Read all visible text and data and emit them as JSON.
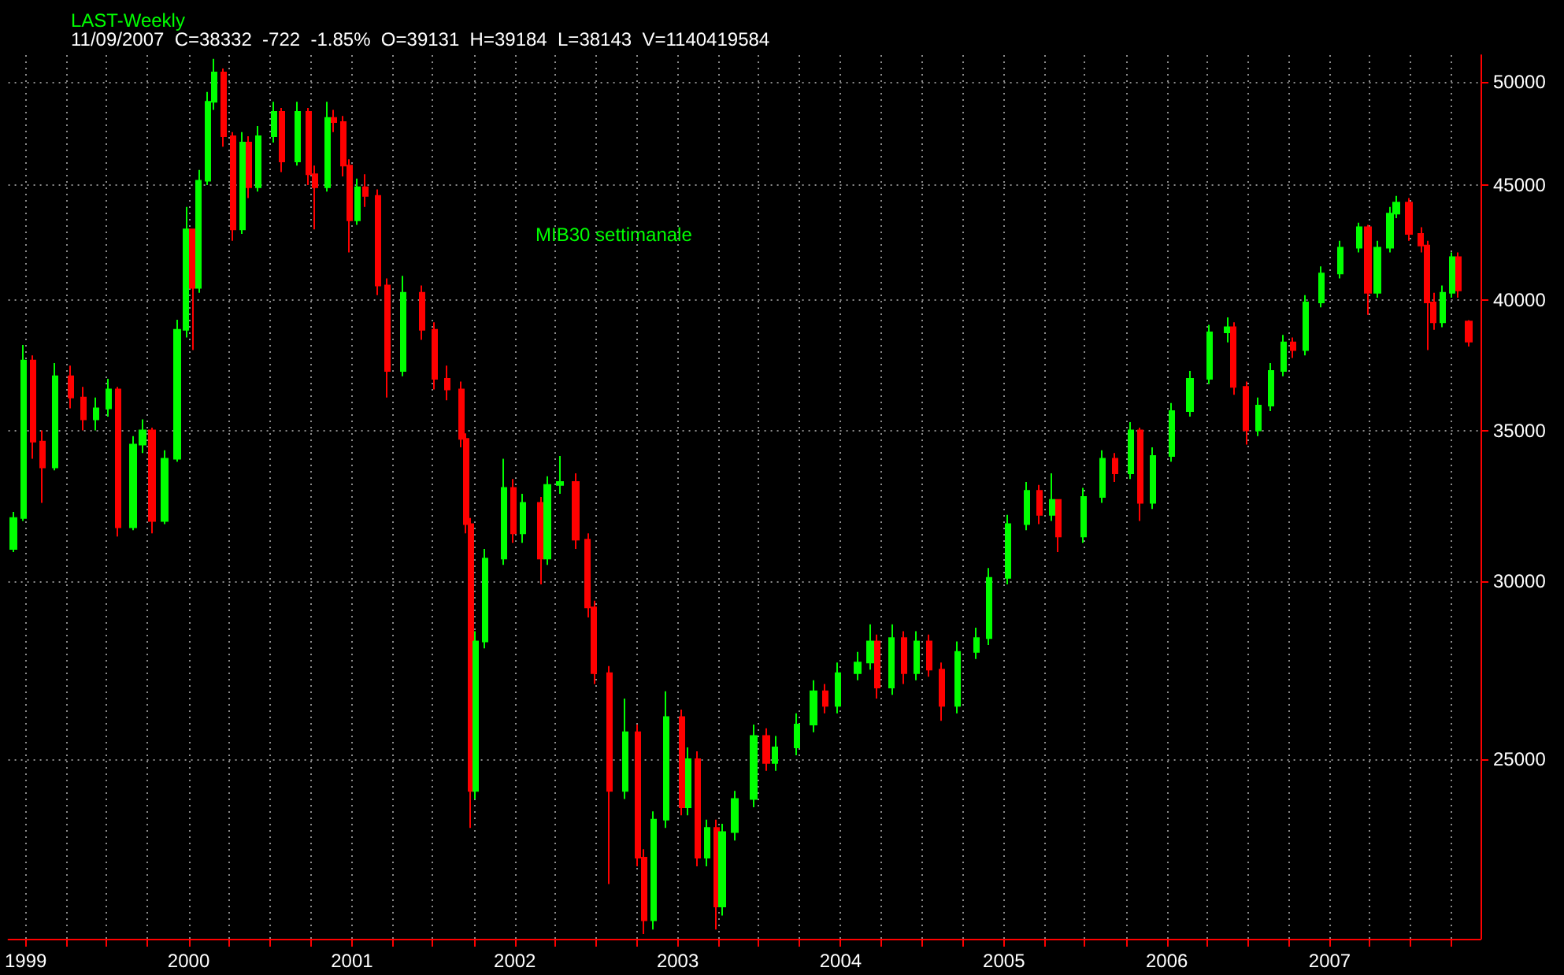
{
  "chart_data": {
    "type": "candlestick",
    "title": "LAST-Weekly",
    "subtitle": "11/09/2007  C=38332  -722  -1.85%  O=39131  H=39184  L=38143  V=1140419584",
    "annotations": [
      "MIB30 settimanale"
    ],
    "colors": [
      "#00ff00",
      "#00ff00",
      "#ff0000",
      "#ff0000",
      "#00ff00",
      "#ff0000",
      "#ff0000",
      "#00ff00",
      "#00ff00",
      "#ff0000",
      "#00ff00",
      "#00ff00",
      "#ff0000",
      "#00ff00",
      "#00ff00",
      "#00ff00",
      "#ff0000",
      "#00ff00",
      "#00ff00",
      "#00ff00",
      "#ff0000",
      "#ff0000",
      "#00ff00",
      "#ff0000",
      "#00ff00",
      "#00ff00",
      "#ff0000",
      "#00ff00",
      "#ff0000",
      "#ff0000",
      "#00ff00",
      "#ff0000",
      "#ff0000",
      "#ff0000",
      "#00ff00",
      "#ff0000",
      "#ff0000",
      "#ff0000",
      "#00ff00",
      "#ff0000",
      "#ff0000",
      "#ff0000",
      "#ff0000",
      "#ff0000",
      "#ff0000",
      "#00ff00",
      "#00ff00",
      "#00ff00",
      "#ff0000",
      "#00ff00",
      "#ff0000",
      "#00ff00",
      "#00ff00",
      "#ff0000",
      "#ff0000",
      "#ff0000",
      "#ff0000",
      "#00ff00",
      "#ff0000",
      "#ff0000",
      "#00ff00",
      "#00ff00",
      "#ff0000",
      "#00ff00",
      "#ff0000",
      "#00ff00",
      "#ff0000",
      "#00ff00",
      "#00ff00",
      "#00ff00",
      "#ff0000",
      "#00ff00",
      "#00ff00",
      "#00ff00",
      "#ff0000",
      "#00ff00",
      "#00ff00",
      "#00ff00",
      "#ff0000",
      "#00ff00",
      "#ff0000",
      "#00ff00",
      "#ff0000",
      "#ff0000",
      "#00ff00",
      "#00ff00",
      "#00ff00",
      "#00ff00",
      "#00ff00",
      "#ff0000",
      "#00ff00",
      "#ff0000",
      "#00ff00",
      "#00ff00",
      "#ff0000",
      "#00ff00",
      "#ff0000",
      "#00ff00",
      "#00ff00",
      "#00ff00",
      "#00ff00",
      "#00ff00",
      "#ff0000",
      "#ff0000",
      "#00ff00",
      "#00ff00",
      "#00ff00",
      "#ff0000",
      "#00ff00",
      "#00ff00",
      "#00ff00",
      "#00ff00",
      "#ff0000",
      "#00ff00",
      "#00ff00",
      "#00ff00",
      "#ff0000",
      "#ff0000",
      "#ff0000",
      "#ff0000",
      "#00ff00",
      "#00ff00",
      "#ff0000",
      "#ff0000"
    ],
    "log": "y",
    "grid": true,
    "xlim": [
      "1998-11-23",
      "2007-12-05"
    ],
    "ylim": [
      20800,
      51400
    ],
    "yticks": [
      25000,
      30000,
      35000,
      40000,
      45000,
      50000
    ],
    "xticks": [
      {
        "value": "1999-01-01",
        "label": "1999"
      },
      {
        "value": "1999-04-01",
        "label": null
      },
      {
        "value": "1999-07-01",
        "label": null
      },
      {
        "value": "1999-10-01",
        "label": null
      },
      {
        "value": "2000-01-01",
        "label": "2000"
      },
      {
        "value": "2000-04-01",
        "label": null
      },
      {
        "value": "2000-07-01",
        "label": null
      },
      {
        "value": "2000-10-01",
        "label": null
      },
      {
        "value": "2001-01-01",
        "label": "2001"
      },
      {
        "value": "2001-04-01",
        "label": null
      },
      {
        "value": "2001-07-01",
        "label": null
      },
      {
        "value": "2001-10-01",
        "label": null
      },
      {
        "value": "2002-01-01",
        "label": "2002"
      },
      {
        "value": "2002-04-01",
        "label": null
      },
      {
        "value": "2002-07-01",
        "label": null
      },
      {
        "value": "2002-10-01",
        "label": null
      },
      {
        "value": "2003-01-01",
        "label": "2003"
      },
      {
        "value": "2003-04-01",
        "label": null
      },
      {
        "value": "2003-07-01",
        "label": null
      },
      {
        "value": "2003-10-01",
        "label": null
      },
      {
        "value": "2004-01-01",
        "label": "2004"
      },
      {
        "value": "2004-04-01",
        "label": null
      },
      {
        "value": "2004-07-01",
        "label": null
      },
      {
        "value": "2004-10-01",
        "label": null
      },
      {
        "value": "2005-01-01",
        "label": "2005"
      },
      {
        "value": "2005-04-01",
        "label": null
      },
      {
        "value": "2005-07-01",
        "label": null
      },
      {
        "value": "2005-10-01",
        "label": null
      },
      {
        "value": "2006-01-01",
        "label": "2006"
      },
      {
        "value": "2006-04-01",
        "label": null
      },
      {
        "value": "2006-07-01",
        "label": null
      },
      {
        "value": "2006-10-01",
        "label": null
      },
      {
        "value": "2007-01-01",
        "label": "2007"
      },
      {
        "value": "2007-04-01",
        "label": null
      },
      {
        "value": "2007-07-01",
        "label": null
      },
      {
        "value": "2007-10-01",
        "label": null
      }
    ],
    "x": [
      "1998-12-04",
      "1998-12-28",
      "1999-01-18",
      "1999-02-08",
      "1999-03-08",
      "1999-04-12",
      "1999-05-10",
      "1999-06-07",
      "1999-07-05",
      "1999-07-26",
      "1999-08-30",
      "1999-09-20",
      "1999-10-11",
      "1999-11-08",
      "1999-12-06",
      "1999-12-27",
      "2000-01-10",
      "2000-01-24",
      "2000-02-14",
      "2000-02-28",
      "2000-03-20",
      "2000-04-10",
      "2000-05-01",
      "2000-05-15",
      "2000-06-05",
      "2000-07-10",
      "2000-07-28",
      "2000-09-01",
      "2000-09-26",
      "2000-10-11",
      "2000-11-08",
      "2000-11-22",
      "2000-12-13",
      "2000-12-27",
      "2001-01-14",
      "2001-02-01",
      "2001-02-28",
      "2001-03-21",
      "2001-04-25",
      "2001-06-07",
      "2001-07-05",
      "2001-08-02",
      "2001-09-03",
      "2001-09-13",
      "2001-09-24",
      "2001-10-05",
      "2001-10-26",
      "2001-12-07",
      "2001-12-28",
      "2002-01-18",
      "2002-03-01",
      "2002-03-15",
      "2002-04-12",
      "2002-05-17",
      "2002-06-14",
      "2002-06-28",
      "2002-08-02",
      "2002-09-06",
      "2002-10-04",
      "2002-10-18",
      "2002-11-08",
      "2002-12-06",
      "2003-01-10",
      "2003-01-24",
      "2003-02-14",
      "2003-03-07",
      "2003-03-28",
      "2003-04-11",
      "2003-05-09",
      "2003-06-20",
      "2003-07-18",
      "2003-08-08",
      "2003-09-26",
      "2003-11-01",
      "2003-11-28",
      "2003-12-26",
      "2004-02-08",
      "2004-03-07",
      "2004-03-24",
      "2004-04-25",
      "2004-05-23",
      "2004-06-20",
      "2004-07-18",
      "2004-08-15",
      "2004-09-20",
      "2004-11-01",
      "2004-11-29",
      "2005-01-10",
      "2005-02-22",
      "2005-03-21",
      "2005-04-18",
      "2005-05-03",
      "2005-06-28",
      "2005-08-09",
      "2005-09-07",
      "2005-10-12",
      "2005-11-02",
      "2005-11-30",
      "2006-01-11",
      "2006-02-22",
      "2006-04-06",
      "2006-05-17",
      "2006-05-31",
      "2006-06-28",
      "2006-07-26",
      "2006-08-23",
      "2006-09-20",
      "2006-10-11",
      "2006-11-08",
      "2006-12-13",
      "2007-01-24",
      "2007-03-07",
      "2007-03-28",
      "2007-04-18",
      "2007-05-16",
      "2007-05-30",
      "2007-06-27",
      "2007-07-25",
      "2007-08-08",
      "2007-08-22",
      "2007-09-12",
      "2007-10-03",
      "2007-10-17",
      "2007-11-09"
    ],
    "ohlc": [
      [
        31000,
        32200,
        30900,
        32000
      ],
      [
        32000,
        38200,
        31900,
        37600
      ],
      [
        37600,
        37800,
        34000,
        34600
      ],
      [
        34600,
        35000,
        32500,
        33700
      ],
      [
        33700,
        37500,
        33600,
        37000
      ],
      [
        37000,
        37400,
        35800,
        36200
      ],
      [
        36200,
        36600,
        35000,
        35400
      ],
      [
        35400,
        36200,
        35000,
        35800
      ],
      [
        35800,
        36900,
        35500,
        36500
      ],
      [
        36500,
        36600,
        31400,
        31700
      ],
      [
        31700,
        34800,
        31600,
        34500
      ],
      [
        34500,
        35400,
        34200,
        35000
      ],
      [
        35000,
        35100,
        31500,
        31900
      ],
      [
        31900,
        34300,
        31800,
        34000
      ],
      [
        34000,
        39200,
        33900,
        38800
      ],
      [
        38800,
        44000,
        38500,
        43000
      ],
      [
        43000,
        43000,
        38000,
        40500
      ],
      [
        40500,
        45700,
        40300,
        45200
      ],
      [
        45200,
        49500,
        45000,
        49000
      ],
      [
        49000,
        51200,
        48600,
        50500
      ],
      [
        50500,
        50700,
        46800,
        47300
      ],
      [
        47300,
        47500,
        42500,
        43000
      ],
      [
        43000,
        47500,
        42800,
        47000
      ],
      [
        47000,
        47300,
        44400,
        44900
      ],
      [
        44900,
        47800,
        44700,
        47300
      ],
      [
        47300,
        49000,
        47000,
        48500
      ],
      [
        48500,
        48700,
        45600,
        46100
      ],
      [
        46100,
        49000,
        45900,
        48500
      ],
      [
        48500,
        48700,
        45000,
        45500
      ],
      [
        45500,
        45900,
        43000,
        44900
      ],
      [
        44900,
        49000,
        44700,
        48200
      ],
      [
        48200,
        48600,
        47500,
        48000
      ],
      [
        48000,
        48300,
        45400,
        45900
      ],
      [
        45900,
        46200,
        42000,
        43400
      ],
      [
        43400,
        45300,
        43200,
        44900
      ],
      [
        44900,
        45500,
        44000,
        44500
      ],
      [
        44500,
        44800,
        40200,
        40600
      ],
      [
        40600,
        40900,
        36200,
        37200
      ],
      [
        37200,
        41000,
        37000,
        40300
      ],
      [
        40300,
        40600,
        38400,
        38800
      ],
      [
        38800,
        39100,
        36500,
        36900
      ],
      [
        36900,
        37400,
        36100,
        36500
      ],
      [
        36500,
        36800,
        34400,
        34700
      ],
      [
        34700,
        34900,
        31500,
        31800
      ],
      [
        31800,
        32000,
        23300,
        24200
      ],
      [
        24200,
        28500,
        24000,
        28200
      ],
      [
        28200,
        31000,
        28000,
        30700
      ],
      [
        30700,
        34000,
        30500,
        33000
      ],
      [
        33000,
        33300,
        31200,
        31500
      ],
      [
        31500,
        32800,
        31200,
        32500
      ],
      [
        32500,
        32700,
        29900,
        30700
      ],
      [
        30700,
        33400,
        30500,
        33100
      ],
      [
        33100,
        34100,
        32800,
        33200
      ],
      [
        33200,
        33500,
        31000,
        31300
      ],
      [
        31300,
        31500,
        28900,
        29200
      ],
      [
        29200,
        29400,
        27000,
        27300
      ],
      [
        27300,
        27500,
        22000,
        24200
      ],
      [
        24200,
        26600,
        24000,
        25700
      ],
      [
        25700,
        25900,
        22400,
        22600
      ],
      [
        22600,
        22800,
        20900,
        21200
      ],
      [
        21200,
        23700,
        21000,
        23500
      ],
      [
        23500,
        26800,
        23300,
        26100
      ],
      [
        26100,
        26300,
        23600,
        23800
      ],
      [
        23800,
        25300,
        23600,
        25000
      ],
      [
        25000,
        25200,
        22400,
        22600
      ],
      [
        22600,
        23500,
        22400,
        23300
      ],
      [
        23300,
        23500,
        21000,
        21500
      ],
      [
        21500,
        23400,
        21300,
        23200
      ],
      [
        23200,
        24200,
        23000,
        24000
      ],
      [
        24000,
        25900,
        23800,
        25600
      ],
      [
        25600,
        25800,
        24700,
        24900
      ],
      [
        24900,
        25600,
        24700,
        25300
      ],
      [
        25300,
        26200,
        25100,
        25900
      ],
      [
        25900,
        27100,
        25700,
        26800
      ],
      [
        26800,
        27000,
        26200,
        26400
      ],
      [
        26400,
        27600,
        26200,
        27300
      ],
      [
        27300,
        27900,
        27100,
        27600
      ],
      [
        27600,
        28700,
        27400,
        28200
      ],
      [
        28200,
        28400,
        26600,
        26900
      ],
      [
        26900,
        28700,
        26700,
        28300
      ],
      [
        28300,
        28500,
        27000,
        27300
      ],
      [
        27300,
        28500,
        27100,
        28200
      ],
      [
        28200,
        28400,
        27200,
        27400
      ],
      [
        27400,
        27600,
        26000,
        26400
      ],
      [
        26400,
        28200,
        26200,
        27900
      ],
      [
        27900,
        28600,
        27700,
        28300
      ],
      [
        28300,
        30400,
        28100,
        30100
      ],
      [
        30100,
        32100,
        29900,
        31800
      ],
      [
        31800,
        33200,
        31600,
        32900
      ],
      [
        32900,
        33100,
        31800,
        32100
      ],
      [
        32100,
        33500,
        31900,
        32600
      ],
      [
        32600,
        32600,
        30900,
        31400
      ],
      [
        31400,
        33000,
        31200,
        32700
      ],
      [
        32700,
        34300,
        32500,
        34000
      ],
      [
        34000,
        34200,
        33200,
        33500
      ],
      [
        33500,
        35300,
        33300,
        35000
      ],
      [
        35000,
        35100,
        31900,
        32500
      ],
      [
        32500,
        34400,
        32300,
        34100
      ],
      [
        34100,
        36000,
        33900,
        35700
      ],
      [
        35700,
        37200,
        35500,
        36900
      ],
      [
        36900,
        39000,
        36700,
        38700
      ],
      [
        38700,
        39300,
        38300,
        38900
      ],
      [
        38900,
        39100,
        36300,
        36600
      ],
      [
        36600,
        36800,
        34500,
        35000
      ],
      [
        35000,
        36200,
        34800,
        35900
      ],
      [
        35900,
        37500,
        35700,
        37200
      ],
      [
        37200,
        38600,
        37000,
        38300
      ],
      [
        38300,
        38500,
        37700,
        38000
      ],
      [
        38000,
        40200,
        37800,
        39900
      ],
      [
        39900,
        41400,
        39700,
        41100
      ],
      [
        41100,
        42500,
        40900,
        42200
      ],
      [
        42200,
        43300,
        42000,
        43100
      ],
      [
        43100,
        43200,
        39400,
        40300
      ],
      [
        40300,
        42500,
        40100,
        42200
      ],
      [
        42200,
        44000,
        42000,
        43700
      ],
      [
        43700,
        44500,
        43500,
        44200
      ],
      [
        44200,
        44400,
        42500,
        42800
      ],
      [
        42800,
        43100,
        42000,
        42300
      ],
      [
        42300,
        42500,
        38000,
        39900
      ],
      [
        39900,
        40300,
        38800,
        39100
      ],
      [
        39100,
        40600,
        38900,
        40300
      ],
      [
        40300,
        42000,
        40100,
        41800
      ],
      [
        41800,
        42000,
        40100,
        40400
      ],
      [
        39131,
        39184,
        38143,
        38332
      ]
    ]
  }
}
